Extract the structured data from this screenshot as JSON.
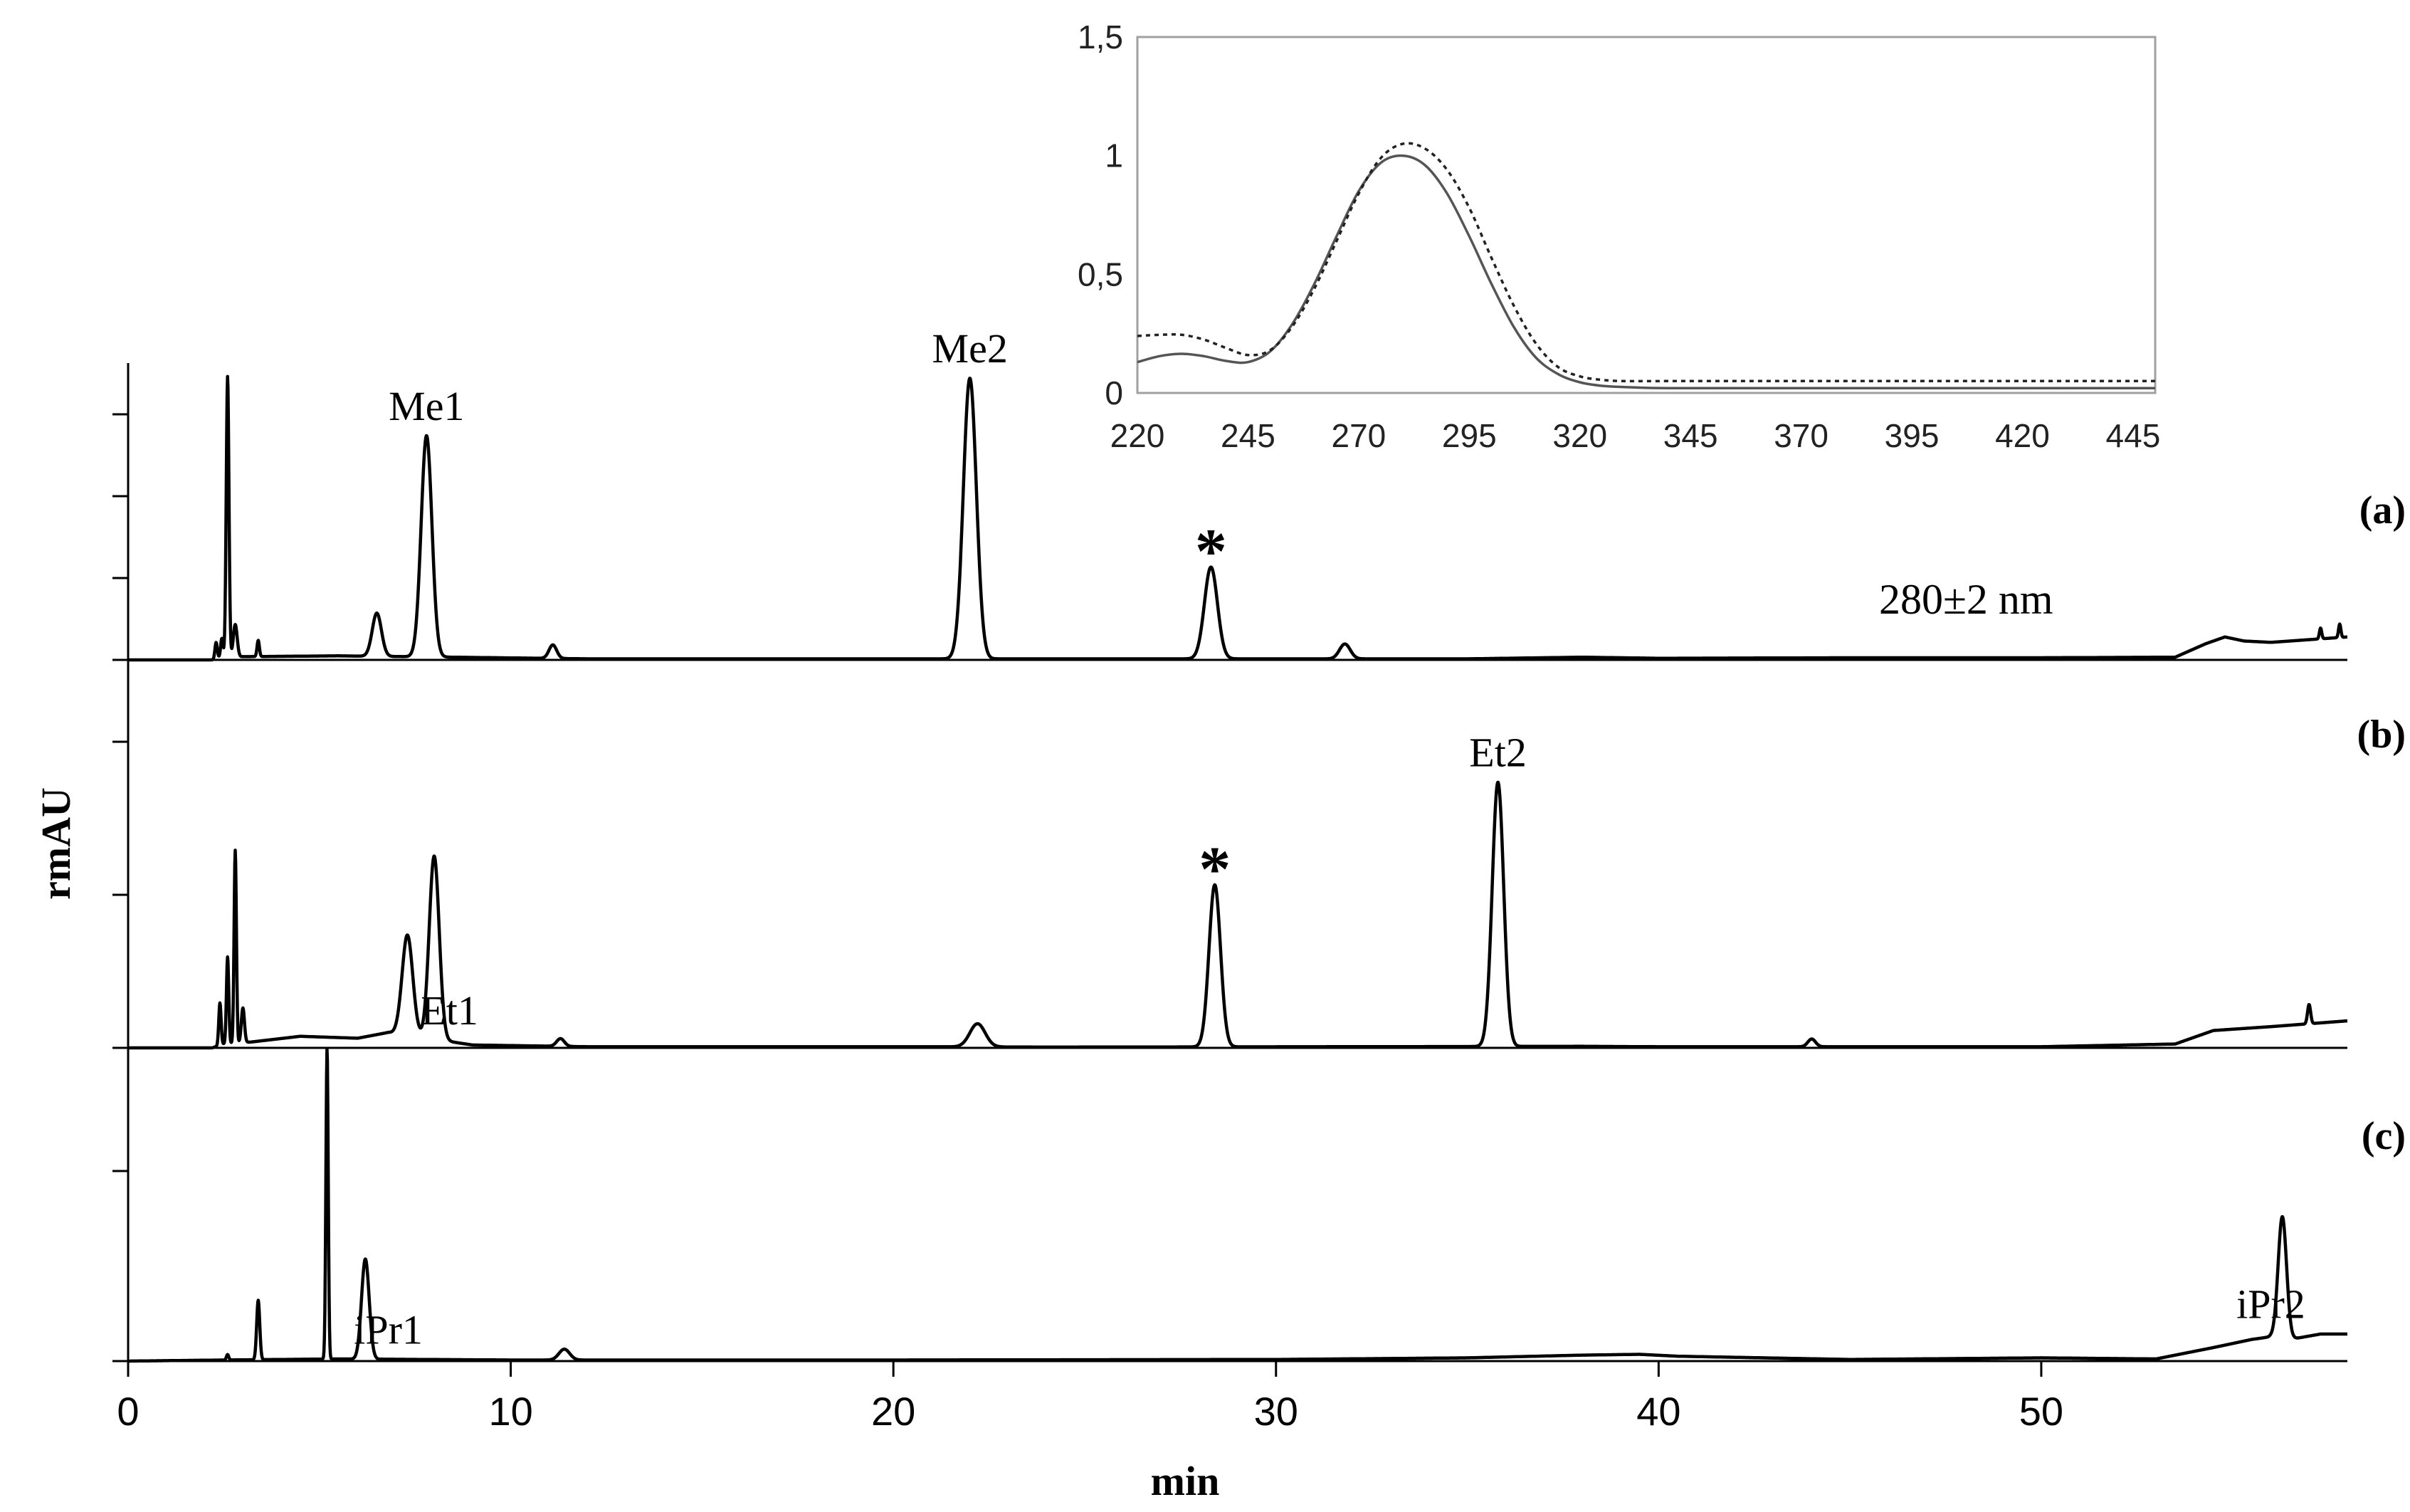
{
  "main": {
    "type": "line",
    "xlabel": "min",
    "ylabel": "rmAU",
    "xlim": [
      0,
      58
    ],
    "xticks": [
      "0",
      "10",
      "20",
      "30",
      "40",
      "50"
    ],
    "wavelength_label": "280±2 nm",
    "asterisk": "*",
    "panels": [
      {
        "id": "a",
        "label": "(a)",
        "ylim": [
          0,
          1.1
        ],
        "baseline": [
          [
            0,
            0
          ],
          [
            2.2,
            0
          ],
          [
            2.4,
            0.01
          ],
          [
            3.0,
            0.012
          ],
          [
            5.5,
            0.015
          ],
          [
            8.5,
            0.01
          ],
          [
            12,
            0.004
          ],
          [
            20,
            0.004
          ],
          [
            25,
            0.004
          ],
          [
            30,
            0.004
          ],
          [
            35,
            0.004
          ],
          [
            38,
            0.01
          ],
          [
            40,
            0.006
          ],
          [
            45,
            0.008
          ],
          [
            50,
            0.008
          ],
          [
            53.5,
            0.01
          ],
          [
            54.3,
            0.06
          ],
          [
            54.8,
            0.085
          ],
          [
            55.3,
            0.07
          ],
          [
            56,
            0.065
          ],
          [
            57,
            0.075
          ],
          [
            58,
            0.085
          ]
        ],
        "peaks": [
          [
            2.3,
            0.06,
            0.03
          ],
          [
            2.45,
            0.07,
            0.03
          ],
          [
            2.6,
            1.04,
            0.035
          ],
          [
            2.8,
            0.12,
            0.05
          ],
          [
            3.4,
            0.06,
            0.03
          ],
          [
            6.5,
            0.16,
            0.12
          ],
          [
            7.8,
            0.82,
            0.14
          ],
          [
            11.1,
            0.05,
            0.1
          ],
          [
            22.0,
            1.04,
            0.17
          ],
          [
            28.3,
            0.34,
            0.17
          ],
          [
            31.8,
            0.055,
            0.14
          ],
          [
            57.3,
            0.04,
            0.03
          ],
          [
            57.8,
            0.05,
            0.03
          ]
        ],
        "annotations": [
          {
            "text": "Me1",
            "x": 7.8
          },
          {
            "text": "Me2",
            "x": 22.0
          },
          {
            "text": "*",
            "x": 28.3
          }
        ]
      },
      {
        "id": "b",
        "label": "(b)",
        "ylim": [
          0,
          2.0
        ],
        "baseline": [
          [
            0,
            0
          ],
          [
            2.2,
            0
          ],
          [
            2.5,
            0.02
          ],
          [
            3.2,
            0.03
          ],
          [
            4.5,
            0.06
          ],
          [
            6,
            0.05
          ],
          [
            6.8,
            0.08
          ],
          [
            9,
            0.015
          ],
          [
            12,
            0.006
          ],
          [
            21,
            0.006
          ],
          [
            24,
            0.004
          ],
          [
            38,
            0.008
          ],
          [
            40,
            0.006
          ],
          [
            50,
            0.006
          ],
          [
            53.5,
            0.02
          ],
          [
            54.5,
            0.09
          ],
          [
            56,
            0.11
          ],
          [
            58,
            0.14
          ]
        ],
        "peaks": [
          [
            2.4,
            0.22,
            0.03
          ],
          [
            2.6,
            0.45,
            0.03
          ],
          [
            2.8,
            1.0,
            0.03
          ],
          [
            3.0,
            0.18,
            0.04
          ],
          [
            7.3,
            0.52,
            0.14
          ],
          [
            8.0,
            0.95,
            0.13
          ],
          [
            11.3,
            0.04,
            0.1
          ],
          [
            22.2,
            0.12,
            0.2
          ],
          [
            28.4,
            0.84,
            0.15
          ],
          [
            35.8,
            1.37,
            0.15
          ],
          [
            44,
            0.04,
            0.1
          ],
          [
            57.0,
            0.1,
            0.04
          ]
        ],
        "annotations": [
          {
            "text": "Et1",
            "x": 8.4
          },
          {
            "text": "*",
            "x": 28.4
          },
          {
            "text": "Et2",
            "x": 35.8
          }
        ]
      },
      {
        "id": "c",
        "label": "(c)",
        "ylim": [
          0,
          1.15
        ],
        "baseline": [
          [
            0,
            0
          ],
          [
            2.5,
            0.004
          ],
          [
            5.5,
            0.008
          ],
          [
            10,
            0.004
          ],
          [
            20,
            0.004
          ],
          [
            30,
            0.006
          ],
          [
            35,
            0.012
          ],
          [
            38,
            0.022
          ],
          [
            39.5,
            0.025
          ],
          [
            40.5,
            0.018
          ],
          [
            45,
            0.006
          ],
          [
            50,
            0.012
          ],
          [
            53,
            0.008
          ],
          [
            54.5,
            0.05
          ],
          [
            55.5,
            0.08
          ],
          [
            56.0,
            0.09
          ],
          [
            56.5,
            0.08
          ],
          [
            57.3,
            0.1
          ],
          [
            58,
            0.1
          ]
        ],
        "peaks": [
          [
            2.6,
            0.02,
            0.03
          ],
          [
            3.4,
            0.22,
            0.04
          ],
          [
            5.2,
            1.15,
            0.03
          ],
          [
            6.2,
            0.37,
            0.1
          ],
          [
            11.4,
            0.04,
            0.14
          ],
          [
            56.3,
            0.45,
            0.11
          ]
        ],
        "annotations": [
          {
            "text": "iPr1",
            "x": 6.8
          },
          {
            "text": "iPr2",
            "x": 56.0
          }
        ]
      }
    ]
  },
  "inset": {
    "type": "line",
    "xlim": [
      220,
      450
    ],
    "ylim": [
      0,
      1.5
    ],
    "xticks": [
      "220",
      "245",
      "270",
      "295",
      "320",
      "345",
      "370",
      "395",
      "420",
      "445"
    ],
    "yticks": [
      "0",
      "0,5",
      "1",
      "1,5"
    ],
    "series": [
      {
        "style": "solid",
        "x": [
          220,
          225,
          230,
          235,
          240,
          245,
          250,
          255,
          260,
          265,
          270,
          275,
          280,
          285,
          290,
          295,
          300,
          305,
          310,
          315,
          320,
          325,
          330,
          340,
          360,
          400,
          450
        ],
        "values": [
          0.13,
          0.155,
          0.165,
          0.155,
          0.135,
          0.13,
          0.175,
          0.29,
          0.46,
          0.66,
          0.85,
          0.97,
          1.0,
          0.96,
          0.84,
          0.66,
          0.46,
          0.28,
          0.15,
          0.08,
          0.045,
          0.03,
          0.025,
          0.02,
          0.02,
          0.02,
          0.02
        ]
      },
      {
        "style": "dashed",
        "x": [
          220,
          225,
          230,
          235,
          240,
          245,
          250,
          255,
          260,
          265,
          270,
          275,
          280,
          285,
          290,
          295,
          300,
          305,
          310,
          315,
          320,
          325,
          330,
          340,
          360,
          400,
          450
        ],
        "values": [
          0.24,
          0.245,
          0.245,
          0.225,
          0.19,
          0.16,
          0.18,
          0.28,
          0.44,
          0.64,
          0.84,
          0.99,
          1.05,
          1.03,
          0.94,
          0.78,
          0.57,
          0.37,
          0.21,
          0.11,
          0.07,
          0.055,
          0.05,
          0.05,
          0.05,
          0.05,
          0.05
        ]
      }
    ]
  }
}
